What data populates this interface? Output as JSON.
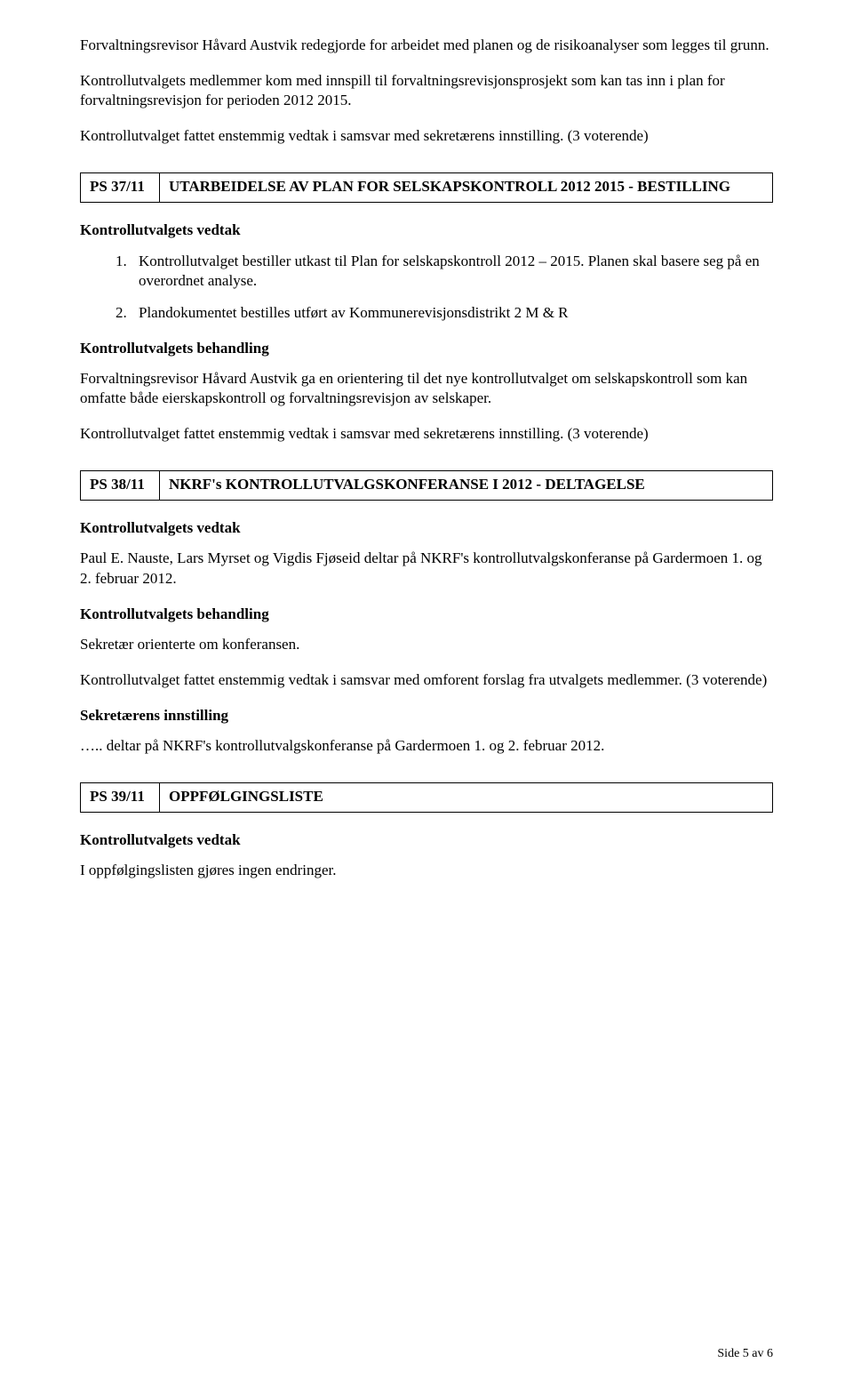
{
  "intro": {
    "p1": "Forvaltningsrevisor Håvard Austvik redegjorde for arbeidet med planen og de risikoanalyser som legges til grunn.",
    "p2": "Kontrollutvalgets medlemmer kom med innspill til forvaltningsrevisjonsprosjekt som kan tas inn i plan for forvaltningsrevisjon for perioden 2012 2015.",
    "p3": "Kontrollutvalget fattet enstemmig vedtak i samsvar med sekretærens innstilling. (3 voterende)"
  },
  "ps37": {
    "code": "PS 37/11",
    "title": "UTARBEIDELSE AV PLAN FOR SELSKAPSKONTROLL 2012 2015 - BESTILLING",
    "vedtak_label": "Kontrollutvalgets vedtak",
    "item1": "Kontrollutvalget bestiller utkast til Plan for selskapskontroll 2012 – 2015. Planen skal basere seg på en overordnet analyse.",
    "item2": "Plandokumentet bestilles utført av Kommunerevisjonsdistrikt 2 M & R",
    "behandling_label": "Kontrollutvalgets behandling",
    "p1": "Forvaltningsrevisor Håvard Austvik ga en orientering til det nye kontrollutvalget om selskapskontroll som kan omfatte både eierskapskontroll og forvaltningsrevisjon av selskaper.",
    "p2": "Kontrollutvalget fattet enstemmig vedtak i samsvar med sekretærens innstilling. (3 voterende)"
  },
  "ps38": {
    "code": "PS 38/11",
    "title": "NKRF's KONTROLLUTVALGSKONFERANSE I 2012 - DELTAGELSE",
    "vedtak_label": "Kontrollutvalgets vedtak",
    "p1": "Paul E. Nauste, Lars Myrset og Vigdis Fjøseid deltar på NKRF's kontrollutvalgskonferanse på Gardermoen 1. og 2. februar 2012.",
    "behandling_label": "Kontrollutvalgets behandling",
    "p2": "Sekretær orienterte om konferansen.",
    "p3": "Kontrollutvalget fattet enstemmig vedtak i samsvar med omforent forslag fra utvalgets medlemmer. (3 voterende)",
    "innstilling_label": "Sekretærens innstilling",
    "p4": "….. deltar på NKRF's kontrollutvalgskonferanse på Gardermoen 1. og 2. februar 2012."
  },
  "ps39": {
    "code": "PS 39/11",
    "title": "OPPFØLGINGSLISTE",
    "vedtak_label": "Kontrollutvalgets vedtak",
    "p1": "I oppfølgingslisten gjøres ingen endringer."
  },
  "footer": "Side 5 av 6"
}
